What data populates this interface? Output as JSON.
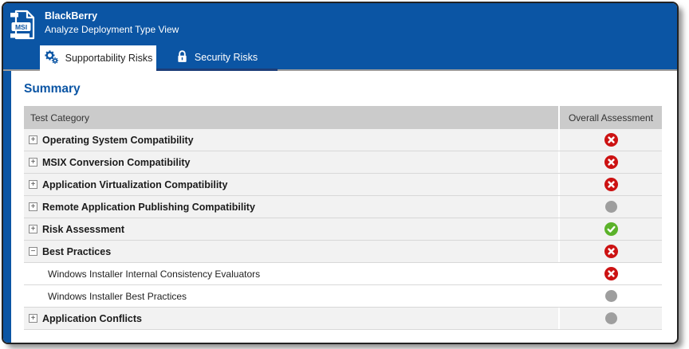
{
  "window": {
    "title": "BlackBerry",
    "subtitle": "Analyze Deployment Type View",
    "file_icon_label": "MSI"
  },
  "tabs": [
    {
      "label": "Supportability Risks",
      "icon": "gears-icon",
      "active": true
    },
    {
      "label": "Security Risks",
      "icon": "lock-icon",
      "active": false
    }
  ],
  "summary": {
    "title": "Summary",
    "columns": [
      "Test Category",
      "Overall Assessment"
    ],
    "rows": [
      {
        "label": "Operating System Compatibility",
        "expand": "plus",
        "level": 0,
        "assessment": "error"
      },
      {
        "label": "MSIX Conversion Compatibility",
        "expand": "plus",
        "level": 0,
        "assessment": "error"
      },
      {
        "label": "Application Virtualization Compatibility",
        "expand": "plus",
        "level": 0,
        "assessment": "error"
      },
      {
        "label": "Remote Application Publishing Compatibility",
        "expand": "plus",
        "level": 0,
        "assessment": "not_run"
      },
      {
        "label": "Risk Assessment",
        "expand": "plus",
        "level": 0,
        "assessment": "success"
      },
      {
        "label": "Best Practices",
        "expand": "minus",
        "level": 0,
        "assessment": "error"
      },
      {
        "label": "Windows Installer Internal Consistency Evaluators",
        "expand": null,
        "level": 1,
        "assessment": "error"
      },
      {
        "label": "Windows Installer Best Practices",
        "expand": null,
        "level": 1,
        "assessment": "not_run"
      },
      {
        "label": "Application Conflicts",
        "expand": "plus",
        "level": 0,
        "assessment": "not_run"
      }
    ]
  },
  "colors": {
    "accent_blue": "#0b55a4",
    "tab_underline_navy": "#1d3e78",
    "error": "#cc1212",
    "success": "#5bb22a",
    "not_run": "#9e9e9e",
    "table_header_gray": "#cbcbcb",
    "row_gray": "#f2f2f2"
  }
}
